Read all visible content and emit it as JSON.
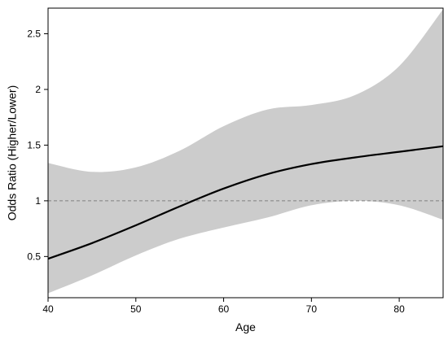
{
  "chart_data": {
    "type": "line",
    "xlabel": "Age",
    "ylabel": "Odds Ratio (Higher/Lower)",
    "xlim": [
      40,
      85
    ],
    "ylim": [
      0.13,
      2.73
    ],
    "xticks": [
      40,
      50,
      60,
      70,
      80
    ],
    "yticks": [
      0.5,
      1,
      1.5,
      2,
      2.5
    ],
    "ytick_labels": [
      "0.5",
      "1",
      "1.5",
      "2",
      "2.5"
    ],
    "reference_line": {
      "y": 1,
      "style": "dashed"
    },
    "series": [
      {
        "role": "estimate",
        "x": [
          40,
          45,
          50,
          55,
          60,
          65,
          70,
          75,
          80,
          85
        ],
        "y": [
          0.48,
          0.62,
          0.78,
          0.95,
          1.11,
          1.24,
          1.33,
          1.39,
          1.44,
          1.49
        ]
      }
    ],
    "confidence_band": {
      "x": [
        40,
        45,
        50,
        55,
        60,
        65,
        70,
        75,
        80,
        85
      ],
      "lower": [
        0.17,
        0.33,
        0.51,
        0.66,
        0.76,
        0.85,
        0.96,
        1.0,
        0.96,
        0.83
      ],
      "upper": [
        1.34,
        1.26,
        1.3,
        1.45,
        1.67,
        1.82,
        1.86,
        1.95,
        2.21,
        2.72
      ]
    },
    "grid": false,
    "colors": {
      "line": "#000000",
      "band": "#cccccc",
      "reference": "#808080",
      "frame": "#000000"
    }
  }
}
